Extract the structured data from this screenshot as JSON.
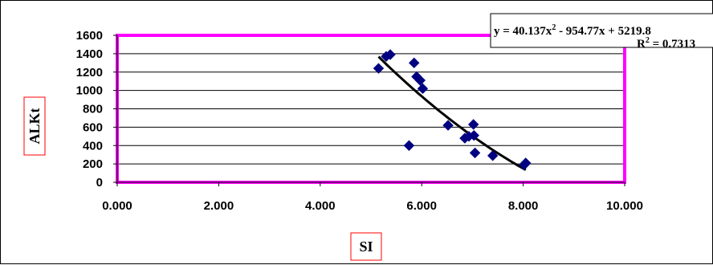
{
  "chart_data": {
    "type": "scatter",
    "xlabel": "SI",
    "ylabel": "ALKt",
    "xlim": [
      0,
      10
    ],
    "ylim": [
      0,
      1600
    ],
    "x_ticks": [
      "0.000",
      "2.000",
      "4.000",
      "6.000",
      "8.000",
      "10.000"
    ],
    "y_ticks": [
      "0",
      "200",
      "400",
      "600",
      "800",
      "1000",
      "1200",
      "1400",
      "1600"
    ],
    "grid": "horizontal",
    "series": [
      {
        "marker": "diamond",
        "color": "#000080",
        "x": [
          5.15,
          5.3,
          5.38,
          5.75,
          5.85,
          5.9,
          5.97,
          6.02,
          6.52,
          6.85,
          6.93,
          7.02,
          7.03,
          7.05,
          7.4,
          8.02,
          8.05
        ],
        "y": [
          1240,
          1370,
          1390,
          400,
          1300,
          1150,
          1110,
          1020,
          620,
          480,
          500,
          630,
          510,
          320,
          290,
          190,
          210
        ]
      }
    ],
    "trendline": {
      "type": "polynomial",
      "order": 2,
      "coefficients": [
        40.137,
        -954.77,
        5219.8
      ],
      "x_range": [
        5.15,
        8.05
      ],
      "color": "#000000",
      "equation_parts": [
        "y = 40.137x",
        "2",
        " - 954.77x + 5219.8"
      ],
      "r2_parts": [
        "R",
        "2",
        " = 0.7313"
      ]
    },
    "plot_area_border_color": "#ff00ff",
    "axis_title_border_color": "#ff0000"
  }
}
